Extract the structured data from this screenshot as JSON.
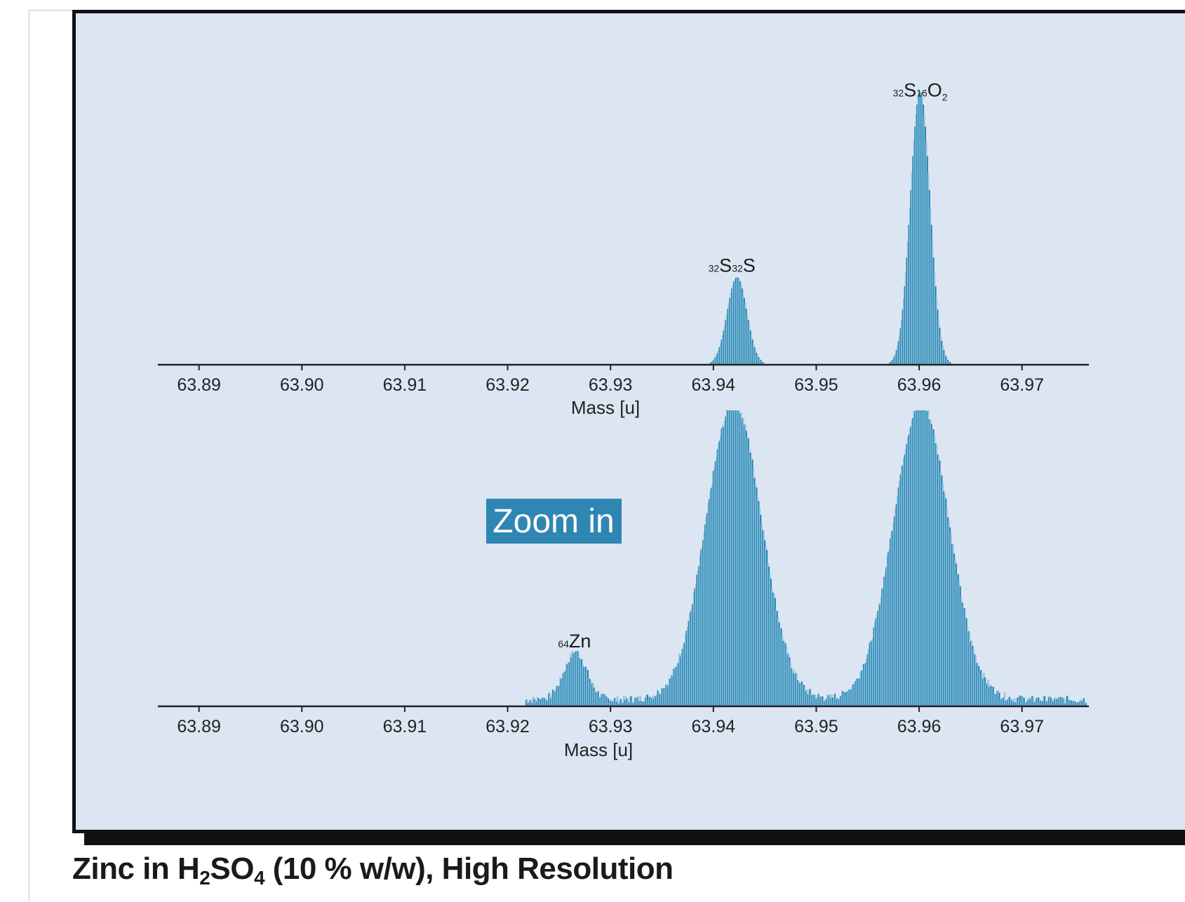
{
  "caption": {
    "prefix": "Zinc in H",
    "sub1": "2",
    "mid": "SO",
    "sub2": "4",
    "suffix": " (10 % w/w), High Resolution"
  },
  "zoom_label": "Zoom in",
  "colors": {
    "panel_background": "#dce6f2",
    "bar_dark": "#2b86b5",
    "bar_light": "#8fc3dd",
    "label_box": "#2f86b3",
    "axis": "#222222"
  },
  "chart_data": [
    {
      "type": "bar",
      "panel": "top",
      "xlabel": "Mass [u]",
      "ylabel": "",
      "xlim": [
        63.886,
        63.9765
      ],
      "ylim": [
        0,
        100
      ],
      "x_ticks": [
        "63.89",
        "63.90",
        "63.91",
        "63.92",
        "63.93",
        "63.94",
        "63.95",
        "63.96",
        "63.97"
      ],
      "annotations": [
        {
          "sup1": "32",
          "base1": "S",
          "sup2": "32",
          "base2": "S",
          "sub": "",
          "x": 63.9418,
          "y": 33
        },
        {
          "sup1": "32",
          "base1": "S",
          "sup2": "16",
          "base2": "O",
          "sub": "2",
          "x": 63.9601,
          "y": 97
        }
      ],
      "peaks": [
        {
          "center": 63.9423,
          "sigma": 0.00095,
          "height": 32
        },
        {
          "center": 63.9601,
          "sigma": 0.00095,
          "height": 100
        }
      ],
      "baseline": 0
    },
    {
      "type": "bar",
      "panel": "bottom",
      "xlabel": "Mass [u]",
      "ylabel": "",
      "xlim": [
        63.886,
        63.9765
      ],
      "ylim": [
        0,
        100
      ],
      "x_ticks": [
        "63.89",
        "63.90",
        "63.91",
        "63.92",
        "63.93",
        "63.94",
        "63.95",
        "63.96",
        "63.97"
      ],
      "annotations": [
        {
          "sup1": "64",
          "base1": "Zn",
          "sup2": "",
          "base2": "",
          "sub": "",
          "x": 63.9265,
          "y": 19
        }
      ],
      "peaks": [
        {
          "center": 63.9266,
          "sigma": 0.0011,
          "height": 16
        },
        {
          "center": 63.942,
          "sigma": 0.0027,
          "height": 100,
          "clipped": true
        },
        {
          "center": 63.9602,
          "sigma": 0.0027,
          "height": 100,
          "clipped": true
        }
      ],
      "baseline": 3
    }
  ]
}
